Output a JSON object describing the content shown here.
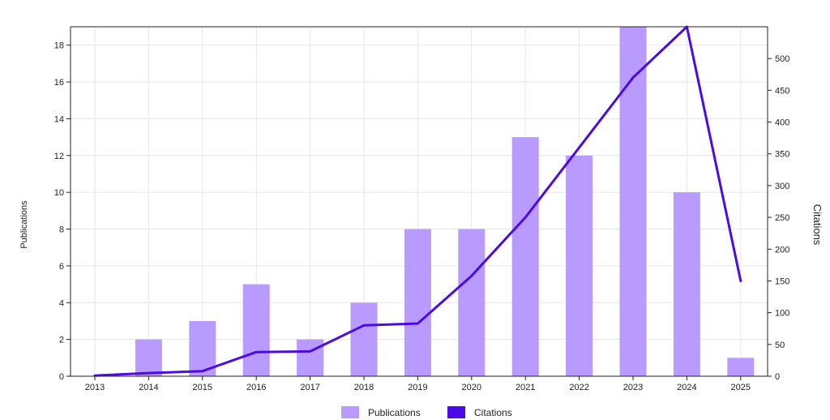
{
  "chart_data": {
    "type": "bar",
    "categories": [
      "2013",
      "2014",
      "2015",
      "2016",
      "2017",
      "2018",
      "2019",
      "2020",
      "2021",
      "2022",
      "2023",
      "2024",
      "2025"
    ],
    "series": [
      {
        "name": "Publications",
        "type": "bar",
        "axis": "left",
        "color": "#b99bff",
        "values": [
          0,
          2,
          3,
          5,
          2,
          4,
          8,
          8,
          13,
          12,
          19,
          10,
          1
        ]
      },
      {
        "name": "Citations",
        "type": "line",
        "axis": "right",
        "color": "#4b0ae6",
        "values": [
          1,
          5,
          8,
          38,
          39,
          80,
          83,
          158,
          250,
          360,
          470,
          550,
          150
        ]
      }
    ],
    "ylabel": "Publications",
    "y2label": "Citations",
    "ylim": [
      0,
      19
    ],
    "y2lim": [
      0,
      550
    ],
    "yticks": [
      0,
      2,
      4,
      6,
      8,
      10,
      12,
      14,
      16,
      18
    ],
    "y2ticks": [
      0,
      50,
      100,
      150,
      200,
      250,
      300,
      350,
      400,
      450,
      500
    ],
    "grid": true,
    "legend": "bottom-center"
  }
}
